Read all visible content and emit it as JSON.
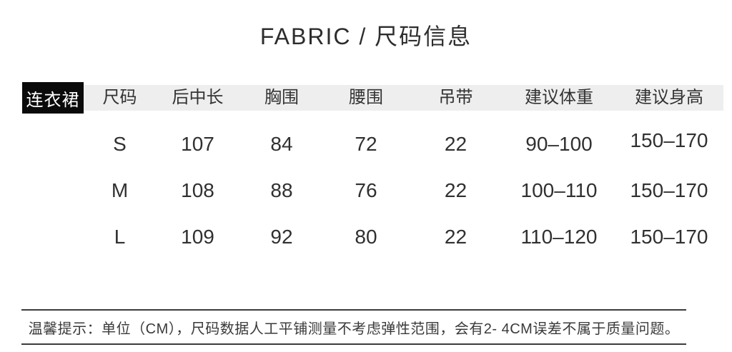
{
  "page_title": "FABRIC / 尺码信息",
  "size_table": {
    "category": "连衣裙",
    "columns": [
      "尺码",
      "后中长",
      "胸围",
      "腰围",
      "吊带",
      "建议体重",
      "建议身高"
    ],
    "rows": [
      {
        "size": "S",
        "values": [
          "107",
          "84",
          "72",
          "22",
          "90–100",
          "150–170"
        ]
      },
      {
        "size": "M",
        "values": [
          "108",
          "88",
          "76",
          "22",
          "100–110",
          "150–170"
        ]
      },
      {
        "size": "L",
        "values": [
          "109",
          "92",
          "80",
          "22",
          "110–120",
          "150–170"
        ]
      }
    ],
    "unit": "CM"
  },
  "notice": "温馨提示：单位（CM），尺码数据人工平铺测量不考虑弹性范围，会有2- 4CM误差不属于质量问题。",
  "colors": {
    "category_bg": "#0a0a0a",
    "category_text": "#ffffff",
    "header_bg": "#eeeeee",
    "body_text": "#303030",
    "divider": "#3c3c3c",
    "background": "#ffffff"
  }
}
